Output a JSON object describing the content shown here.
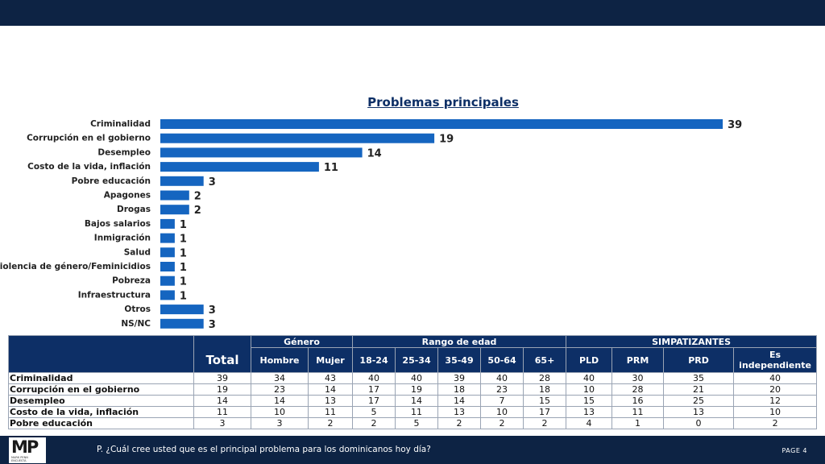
{
  "chart_data": {
    "type": "bar",
    "orientation": "horizontal",
    "title": "Problemas principales",
    "categories": [
      "Criminalidad",
      "Corrupción en el gobierno",
      "Desempleo",
      "Costo de la vida, inflación",
      "Pobre educación",
      "Apagones",
      "Drogas",
      "Bajos salarios",
      "Inmigración",
      "Salud",
      "Violencia de género/Feminicidios",
      "Pobreza",
      "Infraestructura",
      "Otros",
      "NS/NC"
    ],
    "values": [
      39,
      19,
      14,
      11,
      3,
      2,
      2,
      1,
      1,
      1,
      1,
      1,
      1,
      3,
      3
    ],
    "bar_color": "#1565c0",
    "grid": false,
    "legend": "none"
  },
  "table": {
    "total_header": "Total",
    "groups": {
      "genero": "Género",
      "edad": "Rango de edad",
      "simpatizantes": "SIMPATIZANTES"
    },
    "columns": {
      "hombre": "Hombre",
      "mujer": "Mujer",
      "a1": "18-24",
      "a2": "25-34",
      "a3": "35-49",
      "a4": "50-64",
      "a5": "65+",
      "pld": "PLD",
      "prm": "PRM",
      "prd": "PRD",
      "ind": "Es independiente"
    },
    "rows": [
      {
        "label": "Criminalidad",
        "v": [
          "39",
          "34",
          "43",
          "40",
          "40",
          "39",
          "40",
          "28",
          "40",
          "30",
          "35",
          "40"
        ]
      },
      {
        "label": "Corrupción en el gobierno",
        "v": [
          "19",
          "23",
          "14",
          "17",
          "19",
          "18",
          "23",
          "18",
          "10",
          "28",
          "21",
          "20"
        ]
      },
      {
        "label": "Desempleo",
        "v": [
          "14",
          "14",
          "13",
          "17",
          "14",
          "14",
          "7",
          "15",
          "15",
          "16",
          "25",
          "12"
        ]
      },
      {
        "label": "Costo de la vida, inflación",
        "v": [
          "11",
          "10",
          "11",
          "5",
          "11",
          "13",
          "10",
          "17",
          "13",
          "11",
          "13",
          "10"
        ]
      },
      {
        "label": "Pobre educación",
        "v": [
          "3",
          "3",
          "2",
          "2",
          "5",
          "2",
          "2",
          "2",
          "4",
          "1",
          "0",
          "2"
        ]
      }
    ]
  },
  "footer": {
    "logo": "MP",
    "logo_sub": "MARK PENN ENCUESTA",
    "question": "P. ¿Cuál cree usted que es el principal problema para los dominicanos hoy día?",
    "page": "PAGE 4"
  },
  "colors": {
    "navy": "#0d2344",
    "header": "#0d2f66",
    "bar": "#1565c0"
  }
}
